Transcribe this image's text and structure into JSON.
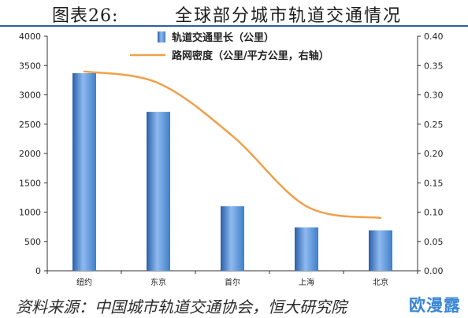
{
  "header": {
    "figure_label": "图表26:",
    "title": "全球部分城市轨道交通情况"
  },
  "source": "资料来源：中国城市轨道交通协会，恒大研究院",
  "watermark": "欧漫露",
  "colors": {
    "bar": "#3f7fc8",
    "line": "#f0a04b",
    "header_rule": "#2f5f9e"
  },
  "chart_data": {
    "type": "bar",
    "categories": [
      "纽约",
      "东京",
      "首尔",
      "上海",
      "北京"
    ],
    "series": [
      {
        "name": "轨道交通里长（公里）",
        "type": "bar",
        "axis": "left",
        "values": [
          3370,
          2710,
          1100,
          740,
          690
        ]
      },
      {
        "name": "路网密度（公里/平方公里，右轴）",
        "type": "line",
        "axis": "right",
        "values": [
          0.34,
          0.32,
          0.23,
          0.11,
          0.09
        ]
      }
    ],
    "ylim_left": [
      0,
      4000
    ],
    "yticks_left": [
      "0",
      "500",
      "1000",
      "1500",
      "2000",
      "2500",
      "3000",
      "3500",
      "4000"
    ],
    "ylim_right": [
      0,
      0.4
    ],
    "yticks_right": [
      "0.00",
      "0.05",
      "0.10",
      "0.15",
      "0.20",
      "0.25",
      "0.30",
      "0.35",
      "0.40"
    ],
    "grid": false,
    "legend_position": "top-center"
  }
}
